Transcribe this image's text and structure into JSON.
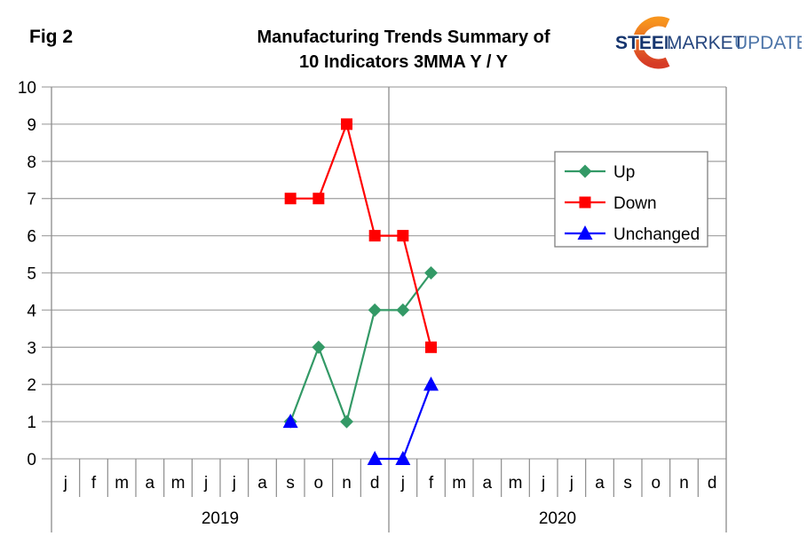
{
  "figure_label": "Fig 2",
  "title": {
    "line1": "Manufacturing Trends Summary of",
    "line2": "10 Indicators 3MMA Y / Y"
  },
  "logo": {
    "steel": "STEEL",
    "market": "MARKET",
    "update": "UPDATE",
    "steel_color": "#16356E",
    "market_color": "#27477F",
    "update_color": "#4C74A8",
    "crescent_top_color": "#F7941E",
    "crescent_bottom_color": "#D63B26"
  },
  "chart_data": {
    "type": "line",
    "title": "Manufacturing Trends Summary of 10 Indicators 3MMA Y / Y",
    "x_months": [
      "j",
      "f",
      "m",
      "a",
      "m",
      "j",
      "j",
      "a",
      "s",
      "o",
      "n",
      "d",
      "j",
      "f",
      "m",
      "a",
      "m",
      "j",
      "j",
      "a",
      "s",
      "o",
      "n",
      "d"
    ],
    "year_groups": [
      {
        "label": "2019",
        "start": 0,
        "end": 11
      },
      {
        "label": "2020",
        "start": 12,
        "end": 23
      }
    ],
    "ylim": [
      0,
      10
    ],
    "yticks": [
      0,
      1,
      2,
      3,
      4,
      5,
      6,
      7,
      8,
      9,
      10
    ],
    "grid": true,
    "legend": {
      "position": "upper-right",
      "entries": [
        "Up",
        "Down",
        "Unchanged"
      ]
    },
    "series": [
      {
        "name": "Up",
        "color": "#339966",
        "marker": "diamond",
        "values": [
          null,
          null,
          null,
          null,
          null,
          null,
          null,
          null,
          1,
          3,
          1,
          4,
          4,
          5,
          null,
          null,
          null,
          null,
          null,
          null,
          null,
          null,
          null,
          null
        ]
      },
      {
        "name": "Down",
        "color": "#FF0000",
        "marker": "square",
        "values": [
          null,
          null,
          null,
          null,
          null,
          null,
          null,
          null,
          7,
          7,
          9,
          6,
          6,
          3,
          null,
          null,
          null,
          null,
          null,
          null,
          null,
          null,
          null,
          null
        ]
      },
      {
        "name": "Unchanged",
        "color": "#0000FF",
        "marker": "triangle",
        "values": [
          null,
          null,
          null,
          null,
          null,
          null,
          null,
          null,
          1,
          null,
          null,
          0,
          0,
          2,
          null,
          null,
          null,
          null,
          null,
          null,
          null,
          null,
          null,
          null
        ]
      }
    ],
    "colors": {
      "gridline": "#A9A9A9",
      "axis": "#8C8C8C",
      "text": "#000000",
      "legend_border": "#808080",
      "background": "#FFFFFF"
    }
  }
}
